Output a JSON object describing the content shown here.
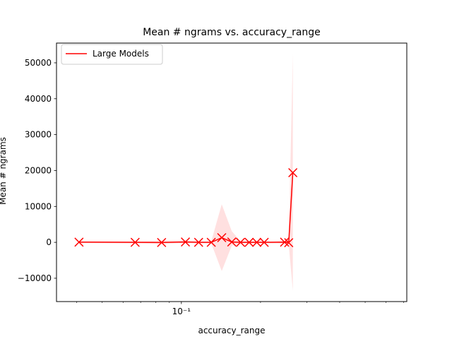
{
  "chart_data": {
    "type": "line",
    "title": "Mean # ngrams vs. accuracy_range",
    "xlabel": "accuracy_range",
    "ylabel": "Mean # ngrams",
    "xscale": "log",
    "xlim": [
      0.0335,
      0.72
    ],
    "ylim": [
      -16500,
      55500
    ],
    "yticks": [
      -10000,
      0,
      10000,
      20000,
      30000,
      40000,
      50000
    ],
    "ytick_labels": [
      "−10000",
      "0",
      "10000",
      "20000",
      "30000",
      "40000",
      "50000"
    ],
    "xticks_major": [
      0.1
    ],
    "xticks_major_labels": [
      "10⁻¹"
    ],
    "xticks_minor": [
      0.04,
      0.05,
      0.06,
      0.07,
      0.08,
      0.09,
      0.2,
      0.3,
      0.4,
      0.5,
      0.6,
      0.7
    ],
    "legend": {
      "position": "top-left"
    },
    "series": [
      {
        "name": "Large Models",
        "color": "#ff0000",
        "band_color": "#ff0000",
        "marker": "x",
        "x": [
          0.0408,
          0.0667,
          0.0841,
          0.1036,
          0.1163,
          0.1299,
          0.1424,
          0.1555,
          0.1679,
          0.181,
          0.1935,
          0.2065,
          0.2469,
          0.256,
          0.2654
        ],
        "y": [
          50,
          0,
          -50,
          100,
          0,
          0,
          1300,
          100,
          0,
          0,
          0,
          0,
          50,
          -100,
          19400
        ],
        "lower": [
          -200,
          -300,
          -400,
          -200,
          -300,
          -300,
          -8000,
          -900,
          -300,
          -300,
          -300,
          -300,
          -300,
          -600,
          -13500
        ],
        "upper": [
          300,
          300,
          500,
          600,
          300,
          300,
          10600,
          3100,
          300,
          300,
          300,
          300,
          400,
          500,
          52500
        ]
      }
    ]
  }
}
